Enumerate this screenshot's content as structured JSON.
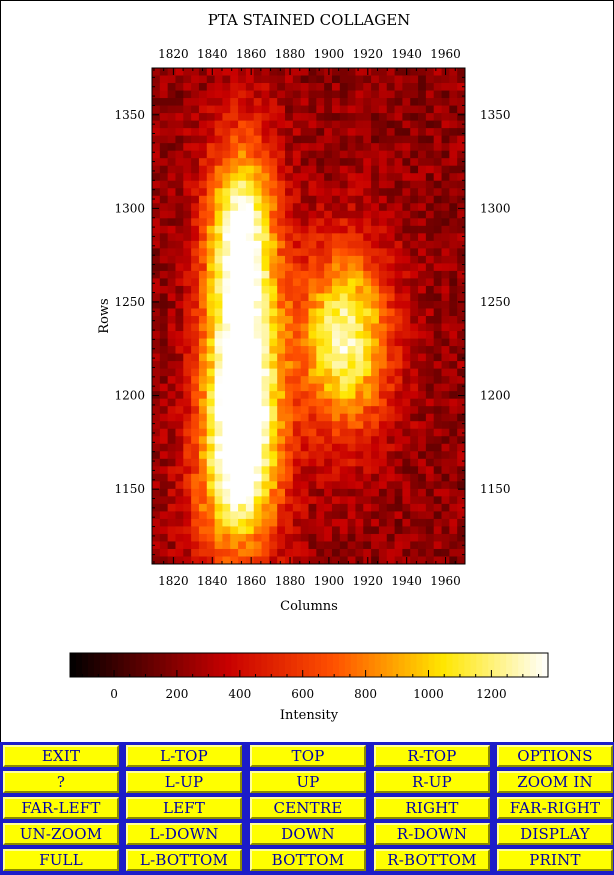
{
  "chart_data": {
    "type": "heatmap",
    "title": "PTA STAINED COLLAGEN",
    "xlabel": "Columns",
    "ylabel": "Rows",
    "xlim": [
      1809,
      1970
    ],
    "ylim": [
      1110,
      1375
    ],
    "xticks": [
      1820,
      1840,
      1860,
      1880,
      1900,
      1920,
      1940,
      1960
    ],
    "yticks": [
      1150,
      1200,
      1250,
      1300,
      1350
    ],
    "grid_cols": 40,
    "grid_rows": 66,
    "colormap": "heat",
    "colorbar": {
      "label": "Intensity",
      "range": [
        -140,
        1380
      ],
      "ticks": [
        0,
        200,
        400,
        600,
        800,
        1000,
        1200
      ]
    },
    "blobs": [
      {
        "x": 1855,
        "y": 1280,
        "peak": 1250,
        "sx": 13,
        "sy": 40
      },
      {
        "x": 1855,
        "y": 1195,
        "peak": 1320,
        "sx": 14,
        "sy": 38
      },
      {
        "x": 1908,
        "y": 1230,
        "peak": 1050,
        "sx": 17,
        "sy": 35
      },
      {
        "x": 1852,
        "y": 1145,
        "peak": 600,
        "sx": 16,
        "sy": 30
      }
    ],
    "background_level": 220
  },
  "buttons": [
    [
      "EXIT",
      "L-TOP",
      "TOP",
      "R-TOP",
      "OPTIONS"
    ],
    [
      "?",
      "L-UP",
      "UP",
      "R-UP",
      "ZOOM IN"
    ],
    [
      "FAR-LEFT",
      "LEFT",
      "CENTRE",
      "RIGHT",
      "FAR-RIGHT"
    ],
    [
      "UN-ZOOM",
      "L-DOWN",
      "DOWN",
      "R-DOWN",
      "DISPLAY"
    ],
    [
      "FULL",
      "L-BOTTOM",
      "BOTTOM",
      "R-BOTTOM",
      "PRINT"
    ]
  ],
  "colors": {
    "button_bg": "#ffff00",
    "button_text": "#0000a8",
    "panel_bg": "#1c1cc8"
  }
}
